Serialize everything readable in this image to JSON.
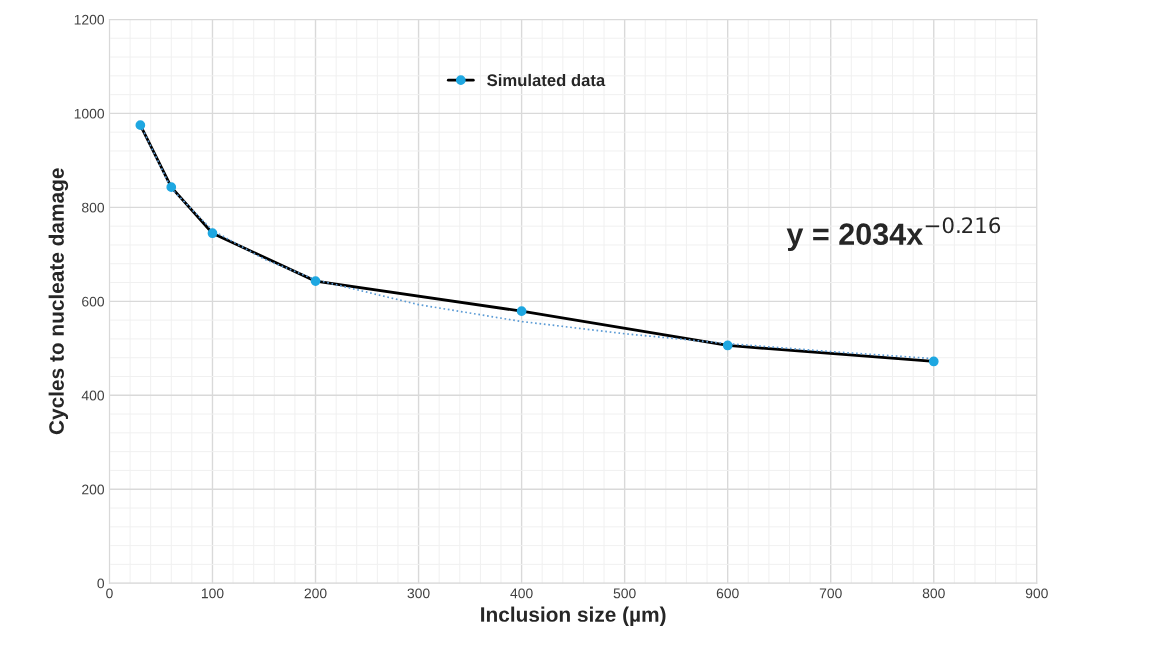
{
  "chart_data": {
    "type": "line",
    "xlabel": "Inclusion size (µm)",
    "ylabel": "Cycles to nucleate damage",
    "xlim": [
      0,
      900
    ],
    "xticks": [
      0,
      100,
      200,
      300,
      400,
      500,
      600,
      700,
      800,
      900
    ],
    "ylim": [
      0,
      1200
    ],
    "yticks": [
      0,
      200,
      400,
      600,
      800,
      1000,
      1200
    ],
    "grid": true,
    "legend": "top",
    "marker": "circle",
    "line_style": "solid",
    "annotations": [
      "y = 2034x$^{−0.216}$"
    ],
    "series": [
      {
        "name": "Simulated data",
        "color": "#000000",
        "colors": [
          "#1ea7e1",
          "#1ea7e1",
          "#1ea7e1",
          "#1ea7e1",
          "#1ea7e1",
          "#1ea7e1",
          "#1ea7e1"
        ],
        "x": [
          30,
          60,
          100,
          200,
          400,
          600,
          800
        ],
        "values": [
          975,
          843,
          745,
          643,
          579,
          506,
          472
        ]
      },
      {
        "type": "line",
        "color": "#5b9bd5",
        "line_style": "dotted",
        "marker": "none",
        "x": [
          30,
          60,
          100,
          150,
          200,
          300,
          400,
          500,
          600,
          700,
          800
        ],
        "values": [
          976,
          840,
          751,
          690,
          646,
          593,
          557,
          531,
          510,
          493,
          478
        ]
      }
    ]
  }
}
